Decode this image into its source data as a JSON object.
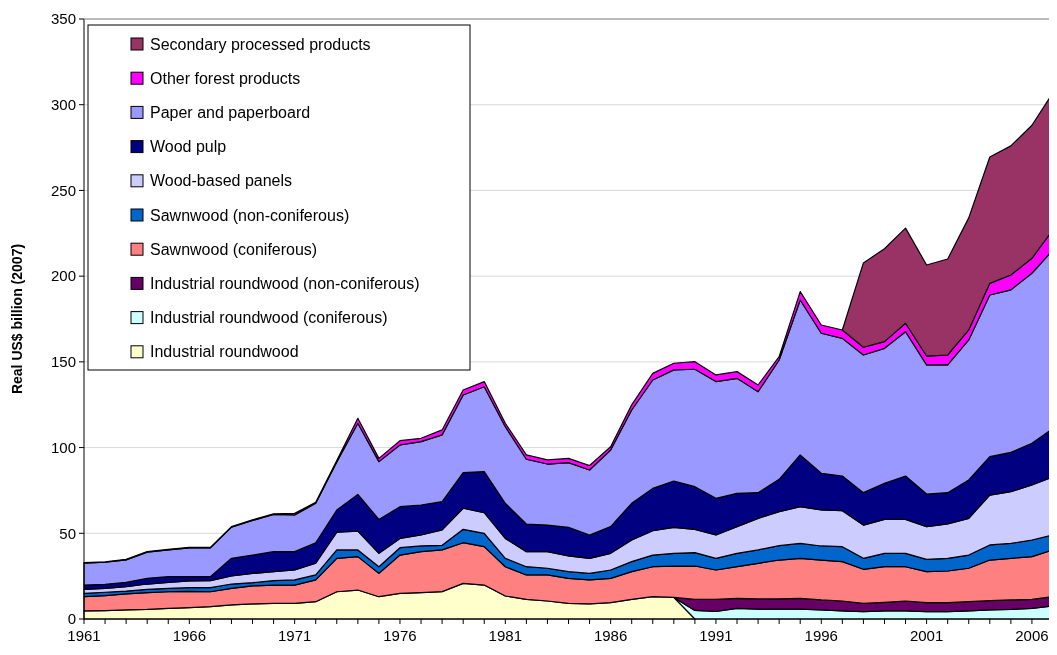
{
  "chart_data": {
    "type": "area",
    "stacked": true,
    "ylabel": "Real US$ billion (2007)",
    "x": [
      1961,
      1962,
      1963,
      1964,
      1965,
      1966,
      1967,
      1968,
      1969,
      1970,
      1971,
      1972,
      1973,
      1974,
      1975,
      1976,
      1977,
      1978,
      1979,
      1980,
      1981,
      1982,
      1983,
      1984,
      1985,
      1986,
      1987,
      1988,
      1989,
      1990,
      1991,
      1992,
      1993,
      1994,
      1995,
      1996,
      1997,
      1998,
      1999,
      2000,
      2001,
      2002,
      2003,
      2004,
      2005,
      2006,
      2007
    ],
    "xlim": [
      1961,
      2007
    ],
    "xticks": [
      1961,
      1966,
      1971,
      1976,
      1981,
      1986,
      1991,
      1996,
      2001,
      2006
    ],
    "ylim": [
      0,
      350
    ],
    "yticks": [
      0,
      50,
      100,
      150,
      200,
      250,
      300,
      350
    ],
    "grid": "y",
    "legend": "top left",
    "series": [
      {
        "name": "Industrial roundwood",
        "color": "#ffffcc",
        "values": [
          4.7,
          4.9,
          5.3,
          5.6,
          6.2,
          6.6,
          7.2,
          8.2,
          8.8,
          9.1,
          9.1,
          10.1,
          15.9,
          16.9,
          13.0,
          15.0,
          15.4,
          16.0,
          20.8,
          19.8,
          13.4,
          11.5,
          10.5,
          9.1,
          8.8,
          9.5,
          11.5,
          13.0,
          12.6,
          0,
          null,
          null,
          null,
          null,
          null,
          null,
          null,
          null,
          null,
          null,
          null,
          null,
          null,
          null,
          null,
          null,
          null
        ]
      },
      {
        "name": "Industrial roundwood (coniferous)",
        "color": "#ccffff",
        "values": [
          null,
          null,
          null,
          null,
          null,
          null,
          null,
          null,
          null,
          null,
          null,
          null,
          null,
          null,
          null,
          null,
          null,
          null,
          null,
          null,
          null,
          null,
          null,
          null,
          null,
          null,
          null,
          null,
          0,
          5.0,
          4.5,
          6.2,
          5.8,
          5.8,
          5.8,
          5.3,
          4.7,
          4.3,
          4.7,
          4.7,
          4.3,
          4.3,
          4.7,
          5.3,
          5.6,
          6.2,
          7.6
        ]
      },
      {
        "name": "Industrial roundwood (non-coniferous)",
        "color": "#660066",
        "values": [
          null,
          null,
          null,
          null,
          null,
          null,
          null,
          null,
          null,
          null,
          null,
          null,
          null,
          null,
          null,
          null,
          null,
          null,
          null,
          null,
          null,
          null,
          null,
          null,
          null,
          null,
          null,
          null,
          0,
          6.5,
          7.0,
          5.8,
          5.9,
          5.9,
          6.2,
          5.8,
          5.8,
          4.8,
          5.0,
          5.8,
          5.2,
          5.2,
          5.4,
          5.4,
          5.5,
          5.3,
          5.4
        ]
      },
      {
        "name": "Sawnwood (coniferous)",
        "color": "#ff8080",
        "values": [
          8.3,
          8.7,
          9.3,
          9.8,
          9.7,
          9.5,
          8.7,
          9.7,
          10.5,
          10.7,
          10.7,
          12.7,
          19.5,
          19.5,
          13.6,
          22.3,
          23.9,
          24.3,
          23.7,
          22.4,
          17.1,
          14.2,
          15.2,
          14.6,
          14.0,
          14.2,
          16.1,
          17.5,
          18.3,
          19.4,
          17.1,
          18.5,
          20.8,
          22.7,
          23.4,
          23.3,
          23.0,
          19.9,
          20.8,
          20.0,
          18.1,
          18.5,
          19.5,
          23.7,
          24.3,
          24.9,
          27.3
        ]
      },
      {
        "name": "Sawnwood (non-coniferous)",
        "color": "#0066cc",
        "values": [
          2.0,
          2.0,
          1.7,
          1.9,
          2.0,
          2.2,
          2.4,
          2.5,
          1.9,
          2.6,
          3.0,
          2.9,
          4.9,
          3.9,
          3.9,
          4.3,
          3.3,
          2.7,
          7.8,
          7.8,
          4.9,
          4.8,
          3.9,
          3.9,
          3.8,
          4.9,
          5.9,
          6.8,
          7.4,
          7.8,
          6.8,
          7.8,
          7.8,
          8.4,
          8.7,
          8.2,
          8.7,
          6.4,
          7.8,
          7.8,
          7.2,
          7.4,
          7.7,
          8.8,
          8.7,
          9.7,
          8.7
        ]
      },
      {
        "name": "Wood-based panels",
        "color": "#ccccff",
        "values": [
          2.3,
          2.3,
          2.6,
          3.1,
          3.5,
          3.9,
          4.1,
          4.7,
          5.4,
          5.2,
          5.8,
          6.8,
          10.3,
          11.0,
          7.8,
          5.4,
          6.4,
          9.0,
          12.3,
          12.0,
          11.6,
          8.8,
          9.7,
          9.2,
          8.8,
          9.7,
          12.6,
          14.2,
          15.2,
          13.6,
          13.6,
          15.6,
          18.4,
          19.8,
          21.4,
          21.0,
          21.0,
          19.4,
          19.8,
          19.8,
          19.1,
          20.0,
          21.4,
          29.1,
          30.2,
          32.1,
          34.0
        ]
      },
      {
        "name": "Wood pulp",
        "color": "#000080",
        "values": [
          2.5,
          2.3,
          2.5,
          3.3,
          3.3,
          2.5,
          2.3,
          10.3,
          10.7,
          11.7,
          10.7,
          12.0,
          13.0,
          21.4,
          19.8,
          18.5,
          17.5,
          16.5,
          20.8,
          24.0,
          20.5,
          16.1,
          15.5,
          16.7,
          13.6,
          15.6,
          21.4,
          24.7,
          27.0,
          24.9,
          21.4,
          19.4,
          15.0,
          18.9,
          30.2,
          21.4,
          20.2,
          18.9,
          21.1,
          25.3,
          19.0,
          18.3,
          22.4,
          22.4,
          22.9,
          24.3,
          28.2
        ]
      },
      {
        "name": "Paper and paperboard",
        "color": "#9999ff",
        "values": [
          12.8,
          12.9,
          13.1,
          15.3,
          15.6,
          16.8,
          16.8,
          18.2,
          20.2,
          21.7,
          21.4,
          23.0,
          28.0,
          41.5,
          33.7,
          36.0,
          37.0,
          38.9,
          45.3,
          49.5,
          44.7,
          37.8,
          35.6,
          37.7,
          37.9,
          44.7,
          54.4,
          63.2,
          64.8,
          68.5,
          68.1,
          67.1,
          58.9,
          69.6,
          90.4,
          81.7,
          80.3,
          80.3,
          78.7,
          84.2,
          75.3,
          74.5,
          81.7,
          94.3,
          94.8,
          99.2,
          104.1
        ]
      },
      {
        "name": "Other forest products",
        "color": "#ff00ff",
        "values": [
          0.3,
          0.3,
          0.3,
          0.3,
          0.3,
          0.3,
          0.3,
          0.3,
          0.3,
          0.3,
          0.9,
          0.6,
          0.8,
          2.9,
          1.9,
          2.5,
          1.9,
          2.9,
          2.9,
          3.0,
          2.0,
          2.5,
          2.4,
          2.5,
          2.6,
          1.9,
          3.0,
          3.9,
          3.9,
          4.4,
          3.9,
          3.9,
          3.9,
          1.9,
          4.9,
          4.8,
          4.9,
          4.5,
          3.9,
          4.9,
          5.2,
          5.8,
          5.8,
          6.8,
          8.7,
          8.7,
          11.7
        ]
      },
      {
        "name": "Secondary processed products",
        "color": "#993366",
        "values": [
          null,
          null,
          null,
          null,
          null,
          null,
          null,
          null,
          null,
          null,
          null,
          null,
          null,
          null,
          null,
          null,
          null,
          null,
          null,
          null,
          null,
          null,
          null,
          null,
          null,
          null,
          null,
          null,
          null,
          null,
          null,
          null,
          null,
          null,
          null,
          null,
          0,
          49.2,
          54.2,
          55.5,
          53.1,
          56.0,
          65.4,
          73.7,
          75.3,
          77.6,
          80.0
        ]
      }
    ]
  }
}
